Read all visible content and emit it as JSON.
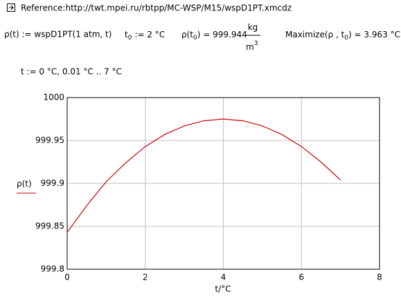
{
  "worksheet": {
    "reference": "Reference:http://twt.mpei.ru/rbtpp/MC-WSP/M15/wspD1PT.xmcdz",
    "rho_definition": "ρ(t) := wspD1PT(1 atm, t)",
    "t0_definition": {
      "var": "t",
      "sub": "0",
      "expr": ":= 2 °C"
    },
    "rho_t0": {
      "prefix": "ρ(t",
      "sub": "0",
      "suffix": ") = 999.944",
      "unit_num": "kg",
      "unit_den": "m",
      "unit_exp": "3"
    },
    "maximize": {
      "prefix": "Maximize(ρ , t",
      "sub": "0",
      "suffix": ") = 3.963 °C"
    },
    "range": "t := 0 °C, 0.01 °C .. 7 °C"
  },
  "chart_data": {
    "type": "line",
    "x_label": "t/°C",
    "y_label": "ρ(t)",
    "x": [
      0,
      0.5,
      1,
      1.5,
      2,
      2.5,
      3,
      3.5,
      4,
      4.5,
      5,
      5.5,
      6,
      6.5,
      7
    ],
    "series": [
      {
        "name": "ρ(t)",
        "color": "#cc0000",
        "values": [
          999.843,
          999.874,
          999.902,
          999.924,
          999.943,
          999.957,
          999.967,
          999.973,
          999.975,
          999.973,
          999.967,
          999.957,
          999.943,
          999.925,
          999.904
        ]
      }
    ],
    "xlim": [
      0,
      8
    ],
    "xticks": [
      0,
      2,
      4,
      6,
      8
    ],
    "ylim": [
      999.8,
      1000
    ],
    "yticks": [
      999.8,
      999.85,
      999.9,
      999.95,
      1000
    ],
    "grid": true
  }
}
